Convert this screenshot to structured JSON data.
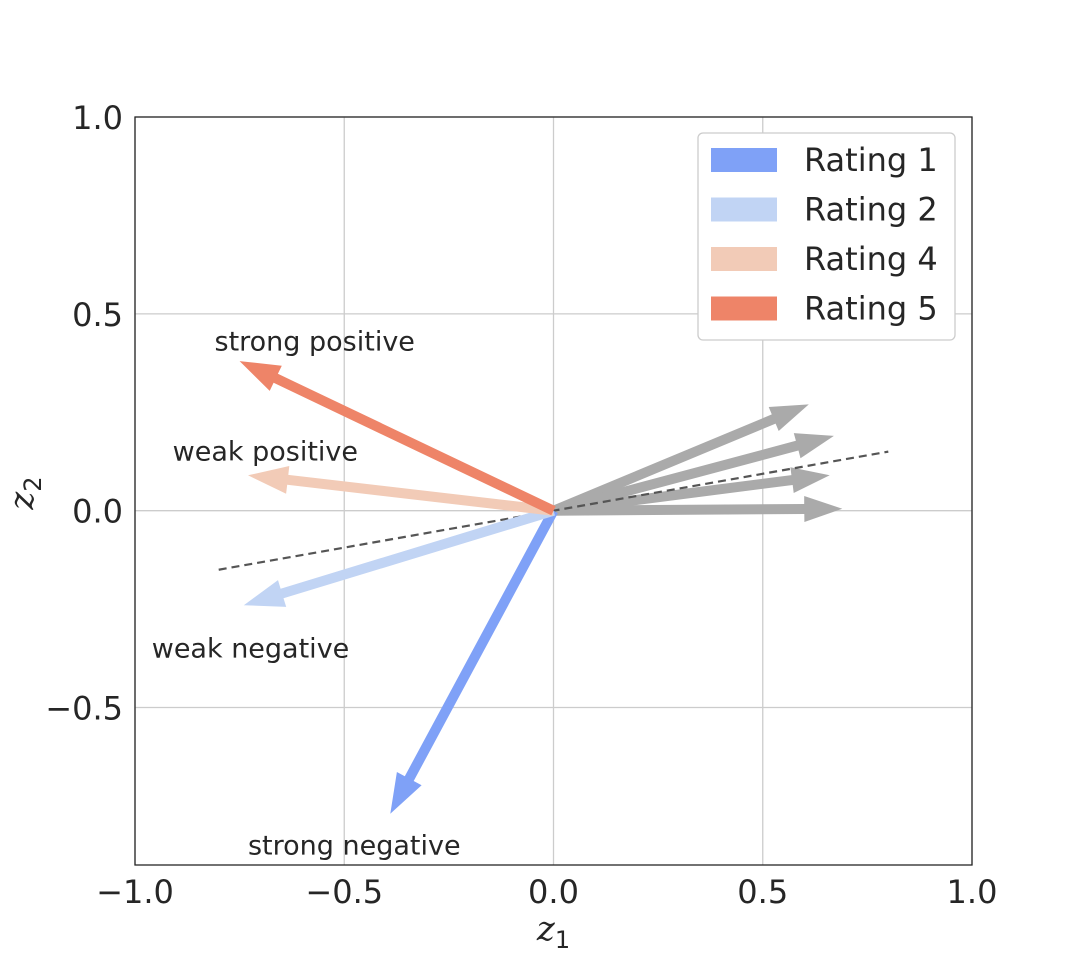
{
  "chart_data": {
    "type": "vector",
    "xlabel": {
      "base": "z",
      "sub": "1"
    },
    "ylabel": {
      "base": "z",
      "sub": "2"
    },
    "xlim": [
      -1.0,
      1.0
    ],
    "ylim": [
      -0.9,
      1.0
    ],
    "xticks": [
      -1.0,
      -0.5,
      0.0,
      0.5,
      1.0
    ],
    "xtick_labels": [
      "−1.0",
      "−0.5",
      "0.0",
      "0.5",
      "1.0"
    ],
    "yticks": [
      -0.5,
      0.0,
      0.5,
      1.0
    ],
    "ytick_labels": [
      "−0.5",
      "0.0",
      "0.5",
      "1.0"
    ],
    "grid": true,
    "legend_position": "top-right",
    "series": [
      {
        "name": "Rating 1",
        "color": "#7fa1f7",
        "vector": [
          -0.39,
          -0.77
        ]
      },
      {
        "name": "Rating 2",
        "color": "#c1d4f4",
        "vector": [
          -0.74,
          -0.24
        ]
      },
      {
        "name": "Rating 4",
        "color": "#f2cbb7",
        "vector": [
          -0.73,
          0.09
        ]
      },
      {
        "name": "Rating 5",
        "color": "#ee8468",
        "vector": [
          -0.75,
          0.38
        ]
      }
    ],
    "neutral_vectors": {
      "color": "#aaaaaa",
      "vectors": [
        [
          0.61,
          0.27
        ],
        [
          0.67,
          0.19
        ],
        [
          0.66,
          0.09
        ],
        [
          0.69,
          0.005
        ]
      ]
    },
    "dashed_line": {
      "color": "#555555",
      "from": [
        -0.8,
        -0.15
      ],
      "to": [
        0.8,
        0.15
      ]
    },
    "annotations": [
      {
        "text": "strong positive",
        "at": [
          -0.81,
          0.43
        ]
      },
      {
        "text": "weak positive",
        "at": [
          -0.91,
          0.15
        ]
      },
      {
        "text": "weak negative",
        "at": [
          -0.96,
          -0.35
        ]
      },
      {
        "text": "strong negative",
        "at": [
          -0.73,
          -0.85
        ]
      }
    ]
  }
}
